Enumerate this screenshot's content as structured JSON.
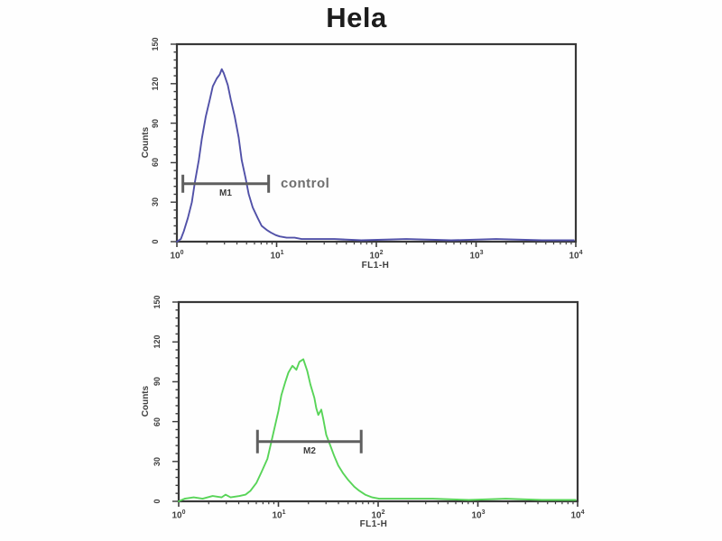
{
  "figure": {
    "title": "Hela",
    "background": "#fefefe",
    "frame_color": "#383838",
    "tick_color": "#3c3c3c",
    "text_color": "#3f3f3f",
    "marker_color": "#5f5f5f"
  },
  "chart_data": [
    {
      "type": "line",
      "name": "control-histogram",
      "xlabel": "FL1-H",
      "ylabel": "Counts",
      "x_scale": "log10",
      "xlim_log": [
        0,
        4
      ],
      "ylim": [
        0,
        150
      ],
      "y_ticks": [
        0,
        30,
        60,
        90,
        120,
        150
      ],
      "x_ticks": [
        {
          "base": "10",
          "exp": "0"
        },
        {
          "base": "10",
          "exp": "1"
        },
        {
          "base": "10",
          "exp": "2"
        },
        {
          "base": "10",
          "exp": "3"
        },
        {
          "base": "10",
          "exp": "4"
        }
      ],
      "series": [
        {
          "name": "control",
          "color": "#5151a8",
          "points_log_counts": [
            [
              0.0,
              0
            ],
            [
              0.04,
              2
            ],
            [
              0.07,
              8
            ],
            [
              0.11,
              18
            ],
            [
              0.15,
              30
            ],
            [
              0.18,
              45
            ],
            [
              0.22,
              62
            ],
            [
              0.25,
              78
            ],
            [
              0.29,
              95
            ],
            [
              0.33,
              108
            ],
            [
              0.36,
              118
            ],
            [
              0.4,
              124
            ],
            [
              0.43,
              127
            ],
            [
              0.45,
              131
            ],
            [
              0.47,
              128
            ],
            [
              0.51,
              119
            ],
            [
              0.54,
              108
            ],
            [
              0.58,
              95
            ],
            [
              0.62,
              79
            ],
            [
              0.65,
              62
            ],
            [
              0.69,
              48
            ],
            [
              0.72,
              36
            ],
            [
              0.76,
              26
            ],
            [
              0.81,
              18
            ],
            [
              0.85,
              12
            ],
            [
              0.9,
              9
            ],
            [
              0.94,
              7
            ],
            [
              0.99,
              5
            ],
            [
              1.03,
              4
            ],
            [
              1.1,
              3
            ],
            [
              1.18,
              3
            ],
            [
              1.25,
              2
            ],
            [
              1.39,
              2
            ],
            [
              1.58,
              2
            ],
            [
              1.85,
              1
            ],
            [
              2.3,
              2
            ],
            [
              2.75,
              1
            ],
            [
              3.2,
              2
            ],
            [
              3.66,
              1
            ],
            [
              3.98,
              1
            ]
          ]
        }
      ],
      "marker": {
        "label": "M1",
        "from_log": 0.06,
        "to_log": 0.92,
        "at_counts": 44,
        "annotation": "control"
      }
    },
    {
      "type": "line",
      "name": "stained-histogram",
      "xlabel": "FL1-H",
      "ylabel": "Counts",
      "x_scale": "log10",
      "xlim_log": [
        0,
        4
      ],
      "ylim": [
        0,
        150
      ],
      "y_ticks": [
        0,
        30,
        60,
        90,
        120,
        150
      ],
      "x_ticks": [
        {
          "base": "10",
          "exp": "0"
        },
        {
          "base": "10",
          "exp": "1"
        },
        {
          "base": "10",
          "exp": "2"
        },
        {
          "base": "10",
          "exp": "3"
        },
        {
          "base": "10",
          "exp": "4"
        }
      ],
      "series": [
        {
          "name": "antibody-stained",
          "color": "#58d458",
          "points_log_counts": [
            [
              0.0,
              0
            ],
            [
              0.06,
              2
            ],
            [
              0.15,
              3
            ],
            [
              0.24,
              2
            ],
            [
              0.34,
              4
            ],
            [
              0.43,
              3
            ],
            [
              0.47,
              5
            ],
            [
              0.52,
              3
            ],
            [
              0.61,
              4
            ],
            [
              0.67,
              5
            ],
            [
              0.72,
              8
            ],
            [
              0.78,
              14
            ],
            [
              0.83,
              22
            ],
            [
              0.89,
              32
            ],
            [
              0.92,
              42
            ],
            [
              0.96,
              55
            ],
            [
              1.0,
              68
            ],
            [
              1.03,
              80
            ],
            [
              1.07,
              90
            ],
            [
              1.1,
              97
            ],
            [
              1.14,
              102
            ],
            [
              1.18,
              99
            ],
            [
              1.21,
              105
            ],
            [
              1.25,
              107
            ],
            [
              1.29,
              98
            ],
            [
              1.32,
              88
            ],
            [
              1.36,
              78
            ],
            [
              1.38,
              70
            ],
            [
              1.4,
              65
            ],
            [
              1.43,
              69
            ],
            [
              1.45,
              62
            ],
            [
              1.48,
              50
            ],
            [
              1.52,
              42
            ],
            [
              1.56,
              34
            ],
            [
              1.6,
              27
            ],
            [
              1.65,
              21
            ],
            [
              1.7,
              16
            ],
            [
              1.76,
              11
            ],
            [
              1.81,
              8
            ],
            [
              1.87,
              5
            ],
            [
              1.94,
              3
            ],
            [
              2.01,
              2
            ],
            [
              2.1,
              2
            ],
            [
              2.28,
              2
            ],
            [
              2.55,
              2
            ],
            [
              2.91,
              1
            ],
            [
              3.28,
              2
            ],
            [
              3.64,
              1
            ],
            [
              3.98,
              1
            ]
          ]
        }
      ],
      "marker": {
        "label": "M2",
        "from_log": 0.79,
        "to_log": 1.83,
        "at_counts": 45,
        "annotation": ""
      }
    }
  ]
}
